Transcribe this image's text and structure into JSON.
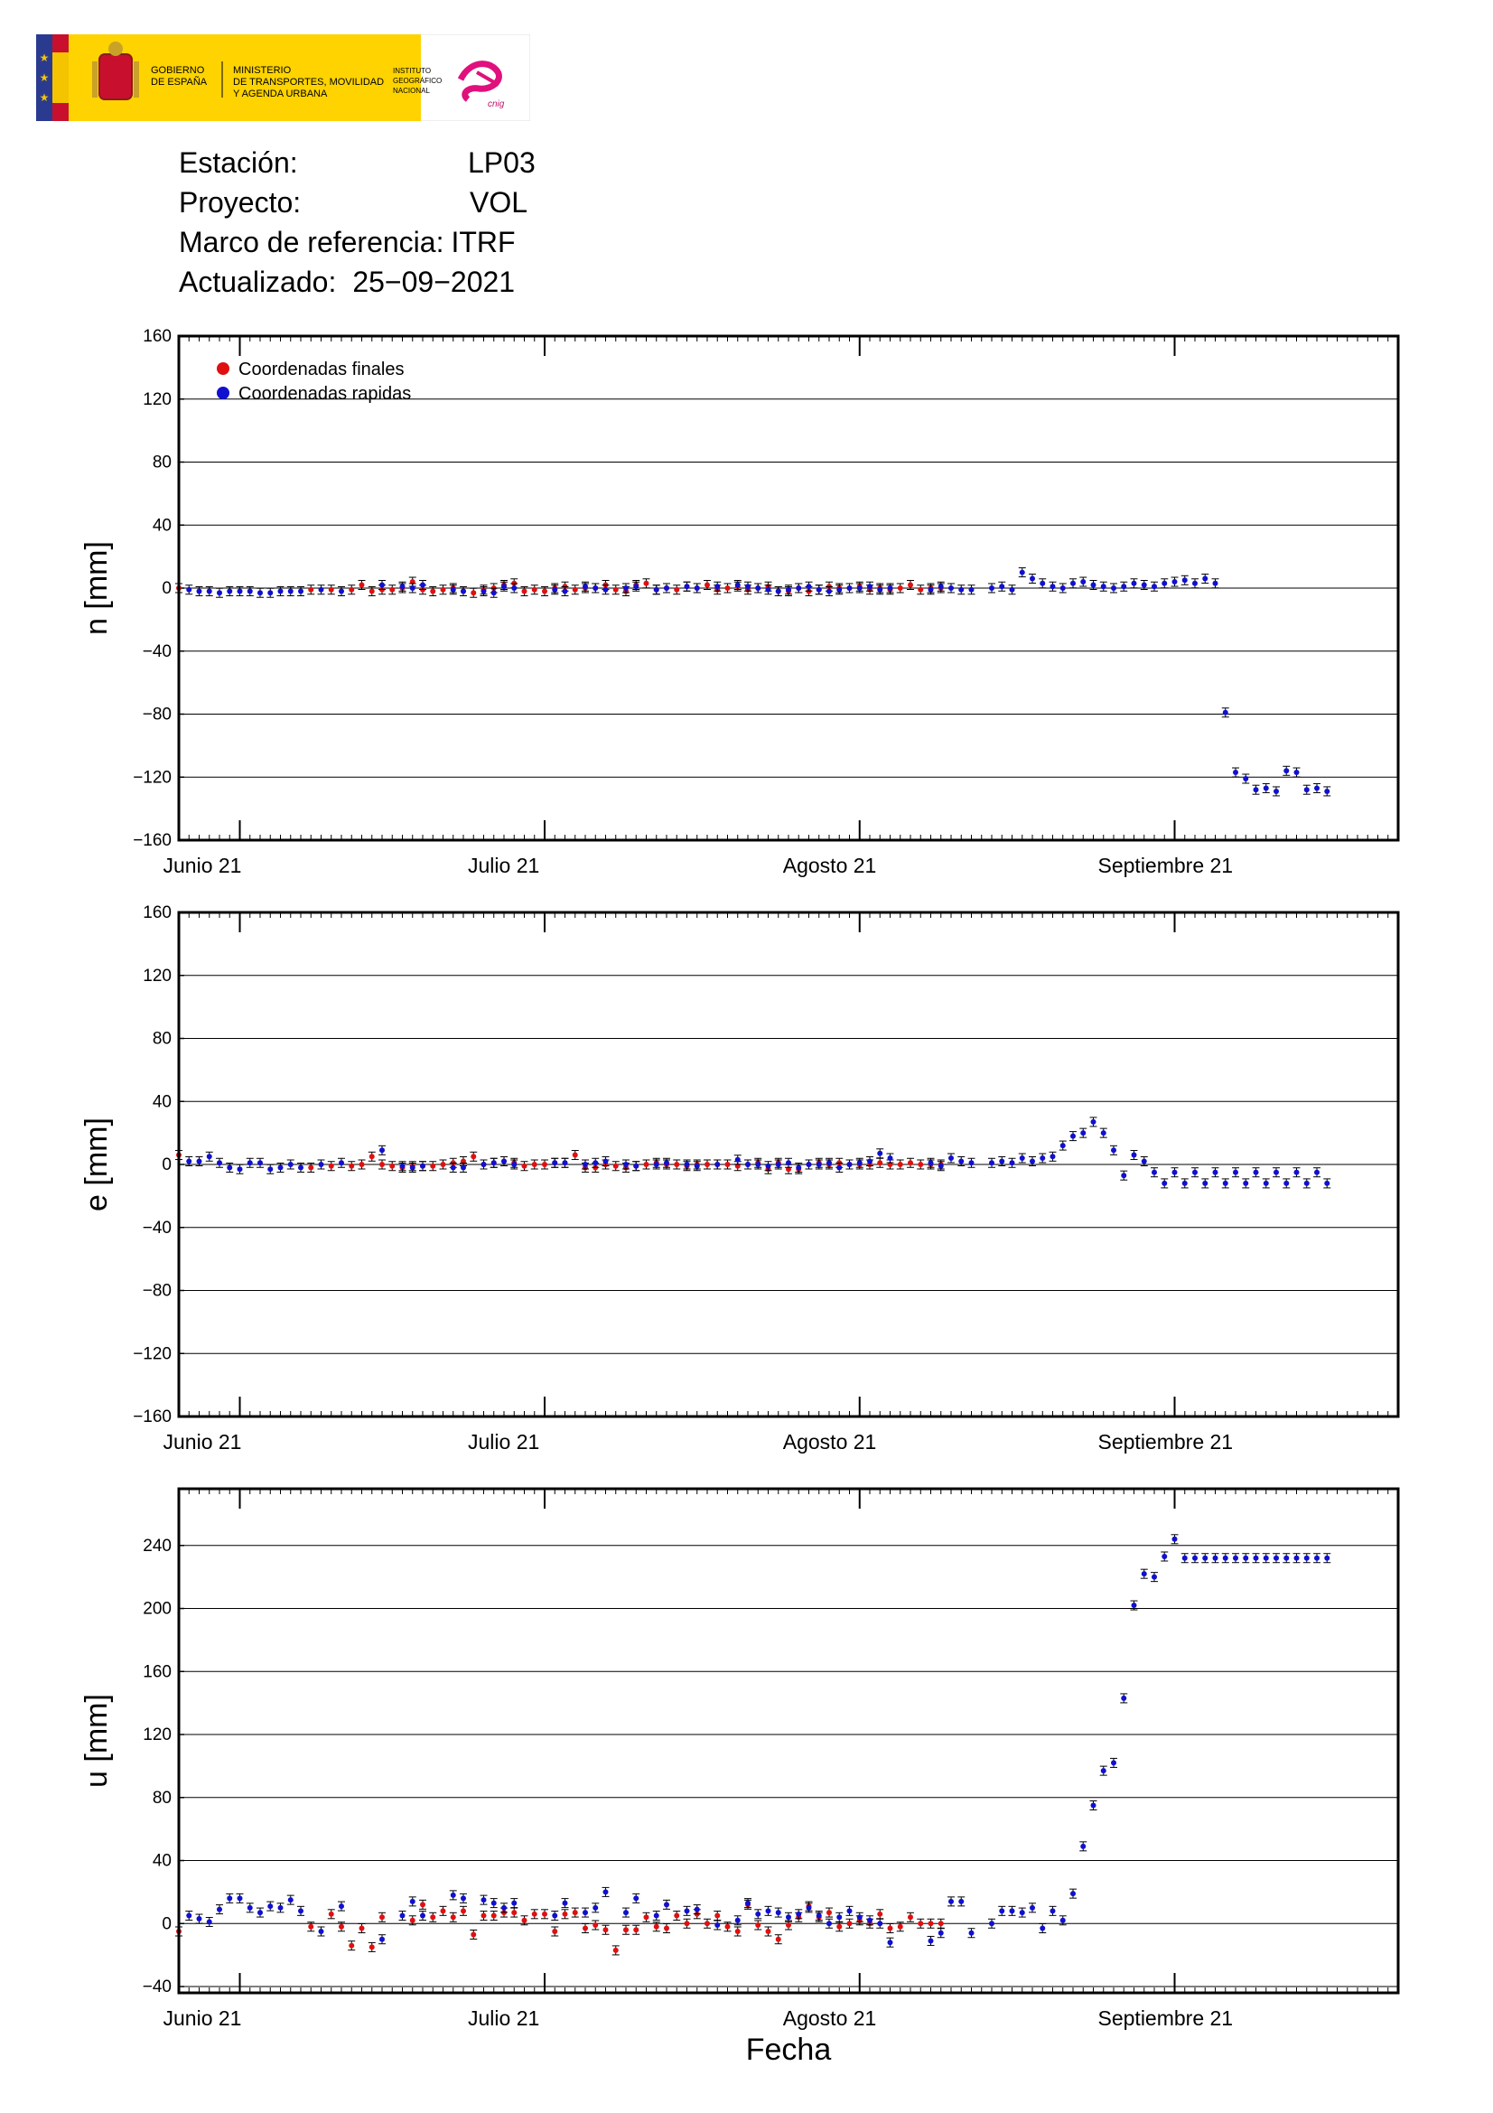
{
  "header": {
    "gov_line1": "GOBIERNO",
    "gov_line2": "DE ESPAÑA",
    "min_line1": "MINISTERIO",
    "min_line2": "DE TRANSPORTES, MOVILIDAD",
    "min_line3": "Y AGENDA URBANA",
    "ign_line1": "INSTITUTO",
    "ign_line2": "GEOGRÁFICO",
    "ign_line3": "NACIONAL",
    "cnig": "cnig"
  },
  "info": {
    "station_label": "Estación:",
    "station_value": "LP03",
    "project_label": "Proyecto:",
    "project_value": "VOL",
    "frame_label": "Marco de referencia:",
    "frame_value": "ITRF",
    "updated_label": "Actualizado:",
    "updated_value": "25−09−2021"
  },
  "colors": {
    "finales": "#e01010",
    "rapidas": "#1010d0"
  },
  "chart_data": [
    {
      "type": "scatter",
      "ylabel": "n [mm]",
      "ylim": [
        -160,
        160
      ],
      "yticks": [
        160,
        120,
        80,
        40,
        0,
        -40,
        -80,
        -120,
        -160
      ],
      "xlim": [
        0,
        120
      ],
      "month_ticks": [
        {
          "day": 6,
          "label": "Junio 21"
        },
        {
          "day": 36,
          "label": "Julio 21"
        },
        {
          "day": 67,
          "label": "Agosto 21"
        },
        {
          "day": 98,
          "label": "Septiembre 21"
        }
      ],
      "grid": true,
      "legend": {
        "position": "top-left",
        "entries": [
          "Coordenadas finales",
          "Coordenadas rapidas"
        ]
      },
      "series": [
        {
          "name": "Coordenadas finales",
          "x": [
            0,
            13,
            15,
            17,
            18,
            19,
            20,
            21,
            22,
            23,
            24,
            25,
            26,
            27,
            28,
            29,
            30,
            31,
            32,
            33,
            34,
            35,
            36,
            37,
            38,
            39,
            40,
            41,
            42,
            43,
            44,
            45,
            46,
            47,
            48,
            49,
            50,
            51,
            52,
            53,
            54,
            55,
            56,
            57,
            58,
            59,
            60,
            61,
            62,
            63,
            64,
            65,
            66,
            67,
            68,
            69,
            70,
            71,
            72,
            73,
            74,
            75
          ],
          "y": [
            0,
            -1,
            -1,
            -1,
            2,
            -2,
            -1,
            -1,
            0,
            4,
            -1,
            -2,
            -1,
            0,
            -2,
            -3,
            -1,
            0,
            2,
            3,
            -2,
            -1,
            -2,
            0,
            1,
            -1,
            0,
            0,
            2,
            -1,
            -2,
            2,
            3,
            -1,
            0,
            -1,
            1,
            0,
            2,
            -1,
            0,
            1,
            -1,
            0,
            1,
            -2,
            -2,
            0,
            -2,
            -1,
            1,
            0,
            0,
            1,
            -1,
            0,
            -1,
            0,
            2,
            -1,
            0,
            0
          ]
        },
        {
          "name": "Coordenadas rapidas",
          "x": [
            1,
            2,
            3,
            4,
            5,
            6,
            7,
            8,
            9,
            10,
            11,
            12,
            14,
            16,
            20,
            22,
            23,
            24,
            27,
            28,
            30,
            31,
            32,
            33,
            37,
            38,
            40,
            41,
            42,
            44,
            45,
            47,
            48,
            50,
            51,
            53,
            55,
            56,
            57,
            58,
            59,
            60,
            61,
            62,
            63,
            64,
            65,
            66,
            67,
            68,
            69,
            70,
            74,
            75,
            76,
            77,
            78,
            80,
            81,
            82,
            83,
            84,
            85,
            86,
            87,
            88,
            89,
            90,
            91,
            92,
            93,
            94,
            95,
            96,
            97,
            98,
            99,
            100,
            101,
            102,
            103,
            104,
            105,
            106,
            107,
            108,
            109,
            110,
            111,
            112,
            113
          ],
          "y": [
            -1,
            -2,
            -2,
            -3,
            -2,
            -2,
            -2,
            -3,
            -3,
            -2,
            -2,
            -2,
            -1,
            -2,
            2,
            1,
            0,
            2,
            -1,
            -2,
            -2,
            -3,
            1,
            0,
            -1,
            -2,
            1,
            0,
            -1,
            0,
            1,
            -1,
            0,
            1,
            0,
            1,
            2,
            1,
            0,
            -1,
            -2,
            -1,
            0,
            1,
            -1,
            -2,
            -1,
            0,
            0,
            1,
            -1,
            0,
            -1,
            1,
            0,
            -1,
            -1,
            0,
            1,
            -1,
            10,
            6,
            3,
            1,
            0,
            3,
            4,
            2,
            1,
            0,
            1,
            3,
            2,
            1,
            3,
            4,
            5,
            3,
            6,
            3,
            -79,
            -117,
            -121,
            -128,
            -127,
            -129,
            -116,
            -117,
            -128,
            -127,
            -129
          ]
        }
      ]
    },
    {
      "type": "scatter",
      "ylabel": "e [mm]",
      "ylim": [
        -160,
        160
      ],
      "yticks": [
        160,
        120,
        80,
        40,
        0,
        -40,
        -80,
        -120,
        -160
      ],
      "xlim": [
        0,
        120
      ],
      "month_ticks": [
        {
          "day": 6,
          "label": "Junio 21"
        },
        {
          "day": 36,
          "label": "Julio 21"
        },
        {
          "day": 67,
          "label": "Agosto 21"
        },
        {
          "day": 98,
          "label": "Septiembre 21"
        }
      ],
      "grid": true,
      "series": [
        {
          "name": "Coordenadas finales",
          "x": [
            0,
            13,
            15,
            17,
            18,
            19,
            20,
            21,
            22,
            23,
            24,
            25,
            26,
            27,
            28,
            29,
            30,
            31,
            32,
            33,
            34,
            35,
            36,
            37,
            38,
            39,
            40,
            41,
            42,
            43,
            44,
            45,
            46,
            47,
            48,
            49,
            50,
            51,
            52,
            53,
            54,
            55,
            56,
            57,
            58,
            59,
            60,
            61,
            62,
            63,
            64,
            65,
            66,
            67,
            68,
            69,
            70,
            71,
            72,
            73,
            74,
            75
          ],
          "y": [
            6,
            -2,
            -1,
            -1,
            0,
            5,
            0,
            -1,
            -2,
            -1,
            -1,
            -1,
            0,
            1,
            2,
            5,
            0,
            1,
            2,
            1,
            -1,
            0,
            0,
            1,
            1,
            6,
            -2,
            -2,
            0,
            -1,
            -2,
            -1,
            0,
            1,
            0,
            0,
            -1,
            0,
            0,
            0,
            0,
            -1,
            0,
            1,
            -3,
            1,
            -3,
            -3,
            0,
            1,
            0,
            1,
            0,
            0,
            0,
            1,
            0,
            0,
            1,
            0,
            0,
            0
          ]
        },
        {
          "name": "Coordenadas rapidas",
          "x": [
            1,
            2,
            3,
            4,
            5,
            6,
            7,
            8,
            9,
            10,
            11,
            12,
            14,
            16,
            20,
            22,
            23,
            24,
            27,
            28,
            30,
            31,
            32,
            33,
            37,
            38,
            40,
            41,
            42,
            44,
            45,
            47,
            48,
            50,
            51,
            53,
            55,
            56,
            57,
            58,
            59,
            60,
            61,
            62,
            63,
            64,
            65,
            66,
            67,
            68,
            69,
            70,
            74,
            75,
            76,
            77,
            78,
            80,
            81,
            82,
            83,
            84,
            85,
            86,
            87,
            88,
            89,
            90,
            91,
            92,
            93,
            94,
            95,
            96,
            97,
            98,
            99,
            100,
            101,
            102,
            103,
            104,
            105,
            106,
            107,
            108,
            109,
            110,
            111,
            112,
            113
          ],
          "y": [
            2,
            2,
            5,
            1,
            -2,
            -3,
            1,
            1,
            -3,
            -2,
            0,
            -2,
            0,
            1,
            9,
            -1,
            -2,
            -1,
            -2,
            -2,
            0,
            1,
            2,
            0,
            1,
            1,
            0,
            1,
            2,
            0,
            -1,
            0,
            1,
            0,
            -1,
            0,
            3,
            0,
            0,
            -1,
            0,
            1,
            -2,
            0,
            0,
            1,
            -2,
            0,
            1,
            2,
            7,
            4,
            1,
            -1,
            4,
            2,
            1,
            1,
            2,
            1,
            4,
            2,
            4,
            5,
            12,
            18,
            20,
            27,
            20,
            9,
            -7,
            6,
            2,
            -5,
            -12,
            -5,
            -12,
            -5,
            -12,
            -5,
            -12,
            -5,
            -12,
            -5,
            -12,
            -5,
            -12,
            -5,
            -12,
            -5,
            -12
          ]
        }
      ]
    },
    {
      "type": "scatter",
      "xlabel": "Fecha",
      "ylabel": "u [mm]",
      "ylim": [
        -44,
        276
      ],
      "yticks": [
        240,
        200,
        160,
        120,
        80,
        40,
        0,
        -40
      ],
      "xlim": [
        0,
        120
      ],
      "month_ticks": [
        {
          "day": 6,
          "label": "Junio 21"
        },
        {
          "day": 36,
          "label": "Julio 21"
        },
        {
          "day": 67,
          "label": "Agosto 21"
        },
        {
          "day": 98,
          "label": "Septiembre 21"
        }
      ],
      "grid": true,
      "series": [
        {
          "name": "Coordenadas finales",
          "x": [
            0,
            13,
            15,
            16,
            17,
            18,
            19,
            20,
            23,
            24,
            25,
            26,
            27,
            28,
            29,
            30,
            31,
            32,
            33,
            34,
            35,
            36,
            37,
            38,
            39,
            40,
            41,
            42,
            43,
            44,
            45,
            46,
            47,
            48,
            49,
            50,
            51,
            52,
            53,
            54,
            55,
            56,
            57,
            58,
            59,
            60,
            61,
            62,
            63,
            64,
            65,
            66,
            67,
            68,
            69,
            70,
            71,
            72,
            73,
            74,
            75
          ],
          "y": [
            -5,
            -2,
            6,
            -2,
            -14,
            -3,
            -15,
            4,
            2,
            12,
            4,
            8,
            4,
            8,
            -7,
            5,
            5,
            7,
            7,
            2,
            6,
            6,
            -5,
            6,
            7,
            -3,
            -1,
            -4,
            -17,
            -4,
            -4,
            4,
            -2,
            -3,
            5,
            0,
            6,
            0,
            5,
            -2,
            -5,
            12,
            -1,
            -5,
            -10,
            -1,
            4,
            11,
            4,
            7,
            -2,
            0,
            2,
            0,
            6,
            -3,
            -2,
            4,
            0,
            0,
            0
          ]
        },
        {
          "name": "Coordenadas rapidas",
          "x": [
            1,
            2,
            3,
            4,
            5,
            6,
            7,
            8,
            9,
            10,
            11,
            12,
            14,
            16,
            20,
            22,
            23,
            24,
            27,
            28,
            30,
            31,
            32,
            33,
            37,
            38,
            40,
            41,
            42,
            44,
            45,
            47,
            48,
            50,
            51,
            53,
            55,
            56,
            57,
            58,
            59,
            60,
            61,
            62,
            63,
            64,
            65,
            66,
            67,
            68,
            69,
            70,
            74,
            75,
            76,
            77,
            78,
            80,
            81,
            82,
            83,
            84,
            85,
            86,
            87,
            88,
            89,
            90,
            91,
            92,
            93,
            94,
            95,
            96,
            97,
            98,
            99,
            100,
            101,
            102,
            103,
            104,
            105,
            106,
            107,
            108,
            109,
            110,
            111,
            112,
            113
          ],
          "y": [
            5,
            3,
            1,
            9,
            16,
            16,
            10,
            7,
            11,
            10,
            15,
            8,
            -5,
            11,
            -10,
            5,
            14,
            5,
            18,
            16,
            15,
            13,
            10,
            13,
            5,
            13,
            7,
            10,
            20,
            7,
            16,
            5,
            12,
            8,
            9,
            -1,
            2,
            13,
            6,
            8,
            7,
            4,
            6,
            10,
            5,
            0,
            4,
            8,
            4,
            2,
            0,
            -12,
            -11,
            -6,
            14,
            14,
            -6,
            0,
            8,
            8,
            7,
            10,
            -3,
            8,
            2,
            19,
            49,
            75,
            97,
            102,
            143,
            202,
            222,
            220,
            233,
            244,
            232,
            232,
            232,
            232,
            232,
            232,
            232,
            232,
            232,
            232,
            232,
            232,
            232,
            232,
            232
          ]
        }
      ]
    }
  ]
}
